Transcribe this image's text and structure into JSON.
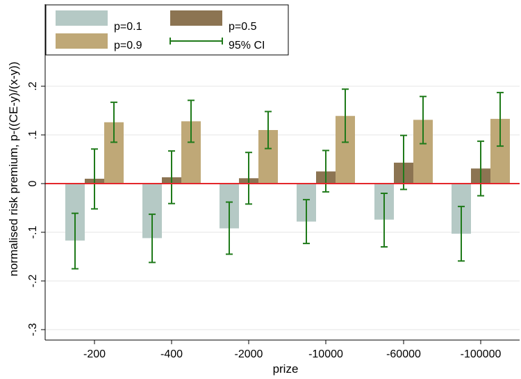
{
  "chart_data": {
    "type": "bar",
    "title": "",
    "xlabel": "prize",
    "ylabel": "normalised risk premium, p-((CE-y)/(x-y))",
    "ylim": [
      -0.32,
      0.2
    ],
    "yticks": [
      -0.3,
      -0.2,
      -0.1,
      0,
      0.1,
      0.2
    ],
    "ytick_labels": [
      "-.3",
      "-.2",
      "-.1",
      "0",
      ".1",
      ".2"
    ],
    "categories": [
      "-200",
      "-400",
      "-2000",
      "-10000",
      "-60000",
      "-100000"
    ],
    "series": [
      {
        "name": "p=0.1",
        "color": "#b5c9c5",
        "values": [
          -0.117,
          -0.112,
          -0.092,
          -0.078,
          -0.074,
          -0.103
        ],
        "ci_low": [
          -0.175,
          -0.162,
          -0.145,
          -0.123,
          -0.13,
          -0.159
        ],
        "ci_high": [
          -0.061,
          -0.063,
          -0.038,
          -0.033,
          -0.02,
          -0.047
        ]
      },
      {
        "name": "p=0.5",
        "color": "#8c7452",
        "values": [
          0.01,
          0.013,
          0.011,
          0.025,
          0.043,
          0.031
        ],
        "ci_low": [
          -0.052,
          -0.041,
          -0.042,
          -0.017,
          -0.012,
          -0.025
        ],
        "ci_high": [
          0.071,
          0.067,
          0.064,
          0.068,
          0.099,
          0.087
        ]
      },
      {
        "name": "p=0.9",
        "color": "#bfa877",
        "values": [
          0.126,
          0.128,
          0.11,
          0.139,
          0.131,
          0.133
        ],
        "ci_low": [
          0.085,
          0.085,
          0.072,
          0.085,
          0.082,
          0.077
        ],
        "ci_high": [
          0.167,
          0.171,
          0.148,
          0.194,
          0.179,
          0.187
        ]
      }
    ],
    "ci_label": "95% CI",
    "ci_color": "#1f7a1a",
    "zero_line_color": "#e3262b",
    "grid": "horizontal",
    "legend_position": "top-left"
  }
}
